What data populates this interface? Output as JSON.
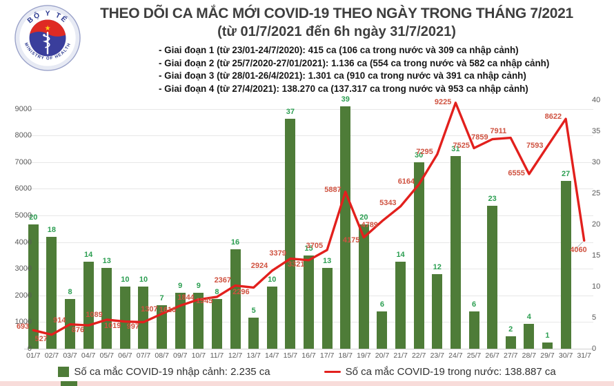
{
  "header": {
    "title_line1": "THEO DÕI CA MẮC MỚI COVID-19 THEO NGÀY TRONG THÁNG 7/2021",
    "title_line2": "(từ 01/7/2021 đến 6h ngày 31/7/2021)",
    "bullets": [
      "- Giai đoạn 1 (từ 23/01-24/7/2020): 415 ca (106 ca trong nước và 309 ca nhập cảnh)",
      "- Giai đoạn 2 (từ 25/7/2020-27/01/2021): 1.136 ca (554 ca trong nước và 582 ca nhập cảnh)",
      "- Giai đoạn 3 (từ 28/01-26/4/2021): 1.301 ca (910 ca trong nước và 391 ca nhập cảnh)",
      "- Giai đoạn 4 (từ 27/4/2021): 138.270 ca (137.317 ca trong nước và 953 ca nhập cảnh)"
    ]
  },
  "logo": {
    "top_text": "BỘ Y TẾ",
    "bottom_text": "MINISTRY OF HEALTH"
  },
  "chart_data": {
    "type": "combo",
    "categories": [
      "01/7",
      "02/7",
      "03/7",
      "04/7",
      "05/7",
      "06/7",
      "07/7",
      "08/7",
      "09/7",
      "10/7",
      "11/7",
      "12/7",
      "13/7",
      "14/7",
      "15/7",
      "16/7",
      "17/7",
      "18/7",
      "19/7",
      "20/7",
      "21/7",
      "22/7",
      "23/7",
      "24/7",
      "25/7",
      "26/7",
      "27/7",
      "28/7",
      "29/7",
      "30/7",
      "31/7"
    ],
    "series": [
      {
        "name": "Số ca mắc COVID-19 nhập cảnh",
        "type": "bar",
        "axis": "right",
        "values": [
          20,
          18,
          8,
          14,
          13,
          10,
          10,
          7,
          9,
          9,
          8,
          16,
          5,
          10,
          37,
          15,
          13,
          39,
          20,
          6,
          14,
          30,
          12,
          31,
          6,
          23,
          2,
          4,
          1,
          27,
          null
        ]
      },
      {
        "name": "Số ca mắc COVID-19 trong nước",
        "type": "line",
        "axis": "left",
        "values": [
          693,
          527,
          914,
          876,
          1089,
          1019,
          997,
          1307,
          1616,
          1844,
          1945,
          2367,
          2296,
          2924,
          3379,
          3321,
          3705,
          5887,
          4175,
          4789,
          5343,
          6164,
          7295,
          9225,
          7525,
          7859,
          7911,
          6555,
          7593,
          8622,
          4060
        ]
      }
    ],
    "left_axis": {
      "min": 0,
      "max": 9326,
      "ticks": [
        0,
        1000,
        2000,
        3000,
        4000,
        5000,
        6000,
        7000,
        8000,
        9000
      ]
    },
    "right_axis": {
      "min": 0,
      "max": 40,
      "ticks": [
        0,
        5,
        10,
        15,
        20,
        25,
        30,
        35,
        40
      ]
    },
    "grid": true,
    "legend_position": "bottom"
  },
  "legend": {
    "items": [
      {
        "label": "Số ca mắc COVID-19 nhập cảnh: 2.235 ca",
        "marker": "square",
        "color": "#4e7c38"
      },
      {
        "label": "Số ca mắc COVID-19 trong nước: 138.887 ca",
        "marker": "line",
        "color": "#e2201d"
      }
    ]
  },
  "colors": {
    "bar": "#4e7c38",
    "bar_label": "#2b9e51",
    "line": "#e2201d",
    "line_label": "#cf5240",
    "axis_text": "#595959",
    "grid": "#e7e7e7",
    "title": "#3e3e3e",
    "strip": "#f8dcda"
  }
}
